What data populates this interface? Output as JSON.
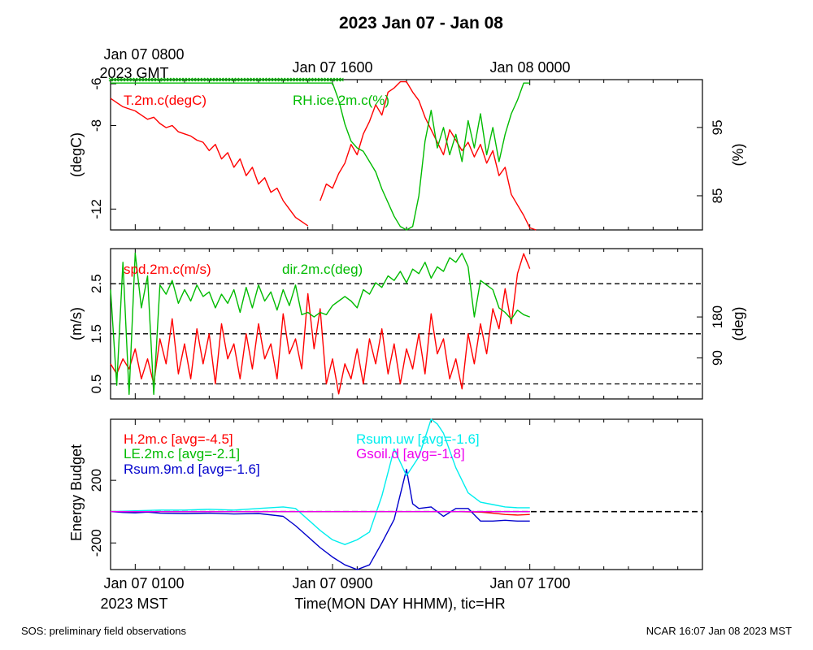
{
  "title": "2023 Jan 07 - Jan 08",
  "top_axis": {
    "origin_line1": "Jan 07 0800",
    "origin_line2": "2023 GMT",
    "tick_labels": [
      "Jan 07 1600",
      "Jan 08 0000"
    ]
  },
  "bottom_axis": {
    "tick_labels": [
      "Jan 07 0100",
      "Jan 07 0900",
      "Jan 07 1700"
    ],
    "tz_label": "2023 MST",
    "xlabel": "Time(MON DAY HHMM), tic=HR"
  },
  "footer": {
    "left": "SOS: preliminary field observations",
    "right": "NCAR 16:07 Jan 08 2023 MST"
  },
  "colors": {
    "red": "#ff0000",
    "green": "#00bb00",
    "blue": "#0000cc",
    "cyan": "#00eeee",
    "magenta": "#ee00ee"
  },
  "chart_data": [
    {
      "type": "line",
      "panel": "temperature_rh",
      "x_unit": "hours since Jan 07 0000 MST",
      "xlim": [
        0,
        24
      ],
      "ylabel_left": "(degC)",
      "ylabel_right": "(%)",
      "ylim_left": [
        -13.0,
        -5.8
      ],
      "ylim_right": [
        80,
        102
      ],
      "yticks_left": [
        -6,
        -8,
        -12
      ],
      "yticks_left_labels": [
        "-6",
        "-8",
        "-12"
      ],
      "yticks_right": [
        95,
        85
      ],
      "yticks_right_labels": [
        "95",
        "85"
      ],
      "legend": [
        "T.2m.c(degC)",
        "RH.ice.2m.c(%)"
      ],
      "series": [
        {
          "name": "T.2m.c(degC)",
          "axis": "left",
          "x": [
            0.0,
            0.25,
            0.5,
            0.75,
            1.0,
            1.25,
            1.5,
            1.75,
            2.0,
            2.25,
            2.5,
            2.75,
            3.0,
            3.25,
            3.5,
            3.75,
            4.0,
            4.25,
            4.5,
            4.75,
            5.0,
            5.25,
            5.5,
            5.75,
            6.0,
            6.25,
            6.5,
            6.75,
            7.0,
            7.25,
            7.5,
            7.75,
            8.0,
            8.25,
            8.5,
            8.75,
            9.0,
            9.25,
            9.5,
            9.75,
            10.0,
            10.25,
            10.5,
            10.75,
            11.0,
            11.25,
            11.5,
            11.75,
            12.0,
            12.25,
            12.5,
            12.75,
            13.0,
            13.25,
            13.5,
            13.75,
            14.0,
            14.25,
            14.5,
            14.75,
            15.0,
            15.25,
            15.5,
            15.75,
            16.0,
            16.25,
            16.5,
            16.75,
            17.0,
            17.25
          ],
          "y": [
            -6.7,
            -6.9,
            -7.1,
            -7.2,
            -7.3,
            -7.5,
            -7.7,
            -7.6,
            -7.9,
            -8.1,
            -8.0,
            -8.3,
            -8.4,
            -8.5,
            -8.7,
            -8.8,
            -9.2,
            -8.9,
            -9.6,
            -9.3,
            -10.0,
            -9.6,
            -10.4,
            -10.0,
            -10.8,
            -10.5,
            -11.2,
            -11.0,
            -11.6,
            -12.0,
            -12.4,
            -12.6,
            -12.8,
            null,
            -11.6,
            -10.8,
            -11.0,
            -10.3,
            -9.8,
            -8.9,
            -9.4,
            -8.4,
            -7.8,
            -7.0,
            -7.5,
            -6.4,
            -6.2,
            -5.9,
            -5.9,
            -6.4,
            -6.8,
            -7.6,
            -8.2,
            -8.8,
            -9.4,
            -8.2,
            -8.7,
            -9.2,
            -8.8,
            -9.5,
            -8.9,
            -9.8,
            -9.2,
            -10.4,
            -10.0,
            -11.3,
            -11.8,
            -12.3,
            -12.9,
            -13.1
          ]
        },
        {
          "name": "RH.ice.2m.c(%)",
          "axis": "right",
          "x": [
            0.0,
            0.5,
            1.0,
            1.5,
            2.0,
            2.5,
            3.0,
            3.5,
            4.0,
            4.5,
            5.0,
            5.5,
            6.0,
            6.5,
            7.0,
            7.5,
            8.0,
            8.5,
            9.0,
            9.25,
            9.5,
            9.75,
            10.0,
            10.25,
            10.5,
            10.75,
            11.0,
            11.25,
            11.5,
            11.75,
            12.0,
            12.25,
            12.5,
            12.75,
            13.0,
            13.25,
            13.5,
            13.75,
            14.0,
            14.25,
            14.5,
            14.75,
            15.0,
            15.25,
            15.5,
            15.75,
            16.0,
            16.25,
            16.5,
            16.75,
            17.0
          ],
          "y": [
            101.5,
            101.5,
            101.5,
            101.5,
            101.5,
            101.5,
            101.5,
            101.5,
            101.5,
            101.5,
            101.5,
            101.5,
            101.5,
            101.5,
            101.5,
            101.5,
            101.5,
            101.5,
            101.5,
            99.0,
            95.5,
            93.0,
            92.0,
            91.5,
            90.0,
            88.5,
            86.0,
            84.0,
            82.0,
            80.5,
            80.0,
            80.5,
            85.0,
            93.0,
            97.5,
            92.0,
            95.0,
            91.0,
            94.0,
            90.0,
            96.0,
            92.0,
            97.0,
            91.0,
            95.0,
            90.0,
            94.0,
            97.0,
            99.0,
            101.5,
            101.5
          ]
        }
      ]
    },
    {
      "type": "line",
      "panel": "wind",
      "x_unit": "hours since Jan 07 0000 MST",
      "xlim": [
        0,
        24
      ],
      "ylabel_left": "(m/s)",
      "ylabel_right": "(deg)",
      "ylim_left": [
        0.2,
        3.2
      ],
      "ylim_right": [
        0,
        330
      ],
      "yticks_left": [
        0.5,
        1.5,
        2.5
      ],
      "yticks_left_labels": [
        "0.5",
        "1.5",
        "2.5"
      ],
      "yticks_right": [
        90,
        180
      ],
      "yticks_right_labels": [
        "90",
        "180"
      ],
      "legend": [
        "spd.2m.c(m/s)",
        "dir.2m.c(deg)"
      ],
      "series": [
        {
          "name": "spd.2m.c(m/s)",
          "axis": "left",
          "x": [
            0.0,
            0.25,
            0.5,
            0.75,
            1.0,
            1.25,
            1.5,
            1.75,
            2.0,
            2.25,
            2.5,
            2.75,
            3.0,
            3.25,
            3.5,
            3.75,
            4.0,
            4.25,
            4.5,
            4.75,
            5.0,
            5.25,
            5.5,
            5.75,
            6.0,
            6.25,
            6.5,
            6.75,
            7.0,
            7.25,
            7.5,
            7.75,
            8.0,
            8.25,
            8.5,
            8.75,
            9.0,
            9.25,
            9.5,
            9.75,
            10.0,
            10.25,
            10.5,
            10.75,
            11.0,
            11.25,
            11.5,
            11.75,
            12.0,
            12.25,
            12.5,
            12.75,
            13.0,
            13.25,
            13.5,
            13.75,
            14.0,
            14.25,
            14.5,
            14.75,
            15.0,
            15.25,
            15.5,
            15.75,
            16.0,
            16.25,
            16.5,
            16.75,
            17.0
          ],
          "y": [
            0.9,
            0.7,
            1.0,
            0.8,
            1.2,
            0.6,
            1.0,
            0.5,
            1.4,
            0.9,
            1.8,
            0.7,
            1.3,
            0.6,
            1.6,
            0.9,
            1.5,
            0.5,
            1.7,
            1.0,
            1.3,
            0.6,
            1.5,
            0.8,
            1.7,
            1.0,
            1.3,
            0.6,
            1.9,
            1.1,
            1.4,
            0.8,
            2.3,
            1.2,
            2.0,
            0.5,
            1.0,
            0.3,
            0.9,
            0.6,
            1.2,
            0.5,
            1.4,
            0.9,
            1.6,
            0.7,
            1.3,
            0.5,
            1.2,
            0.8,
            1.5,
            0.7,
            1.9,
            1.1,
            1.4,
            0.6,
            1.0,
            0.4,
            1.5,
            0.9,
            1.7,
            1.1,
            2.0,
            1.6,
            2.4,
            1.7,
            2.7,
            3.1,
            2.8
          ]
        },
        {
          "name": "dir.2m.c(deg)",
          "axis": "right",
          "x": [
            0.0,
            0.25,
            0.5,
            0.75,
            1.0,
            1.25,
            1.5,
            1.75,
            2.0,
            2.25,
            2.5,
            2.75,
            3.0,
            3.25,
            3.5,
            3.75,
            4.0,
            4.25,
            4.5,
            4.75,
            5.0,
            5.25,
            5.5,
            5.75,
            6.0,
            6.25,
            6.5,
            6.75,
            7.0,
            7.25,
            7.5,
            7.75,
            8.0,
            8.25,
            8.5,
            8.75,
            9.0,
            9.25,
            9.5,
            9.75,
            10.0,
            10.25,
            10.5,
            10.75,
            11.0,
            11.25,
            11.5,
            11.75,
            12.0,
            12.25,
            12.5,
            12.75,
            13.0,
            13.25,
            13.5,
            13.75,
            14.0,
            14.25,
            14.5,
            14.75,
            15.0,
            15.25,
            15.5,
            15.75,
            16.0,
            16.25,
            16.5,
            16.75,
            17.0
          ],
          "y": [
            240,
            30,
            300,
            10,
            320,
            200,
            270,
            10,
            250,
            230,
            260,
            210,
            240,
            215,
            250,
            225,
            235,
            200,
            230,
            210,
            240,
            190,
            245,
            200,
            250,
            215,
            235,
            195,
            240,
            205,
            250,
            185,
            190,
            180,
            190,
            185,
            205,
            215,
            225,
            215,
            200,
            240,
            230,
            255,
            245,
            270,
            260,
            280,
            255,
            285,
            275,
            300,
            265,
            290,
            280,
            310,
            300,
            320,
            290,
            180,
            260,
            250,
            240,
            200,
            190,
            175,
            195,
            185,
            180
          ]
        }
      ]
    },
    {
      "type": "line",
      "panel": "energy_budget",
      "x_unit": "hours since Jan 07 0000 MST",
      "xlim": [
        0,
        24
      ],
      "ylabel_left": "Energy Budget",
      "ylim_left": [
        -370,
        590
      ],
      "yticks_left": [
        200,
        -200
      ],
      "yticks_left_labels": [
        "200",
        "-200"
      ],
      "legend": [
        "H.2m.c [avg=-4.5]",
        "LE.2m.c [avg=-2.1]",
        "Rsum.9m.d [avg=-1.6]",
        "Rsum.uw [avg=-1.6]",
        "Gsoil.d [avg=-1.8]"
      ],
      "series": [
        {
          "name": "H.2m.c [avg=-4.5]",
          "color": "red",
          "x": [
            0,
            2,
            4,
            6,
            8,
            10,
            12,
            14,
            15,
            15.5,
            16,
            16.5,
            17
          ],
          "y": [
            0,
            0,
            0,
            0,
            0,
            0,
            0,
            0,
            -3,
            -10,
            -18,
            -22,
            -18
          ]
        },
        {
          "name": "LE.2m.c [avg=-2.1]",
          "color": "green",
          "x": [
            0,
            4,
            8,
            12,
            16,
            17
          ],
          "y": [
            0,
            0,
            0,
            0,
            0,
            0
          ]
        },
        {
          "name": "Rsum.9m.d [avg=-1.6]",
          "color": "blue",
          "x": [
            0,
            0.5,
            1,
            1.5,
            2,
            3,
            4,
            5,
            6,
            7,
            7.5,
            8,
            8.5,
            9,
            9.5,
            10,
            10.5,
            11,
            11.5,
            12,
            12.25,
            12.5,
            13,
            13.5,
            14,
            14.5,
            15,
            15.5,
            16,
            16.5,
            17
          ],
          "y": [
            0,
            -5,
            -8,
            -3,
            -10,
            -12,
            -10,
            -15,
            -12,
            -30,
            -90,
            -160,
            -230,
            -290,
            -340,
            -370,
            -340,
            -200,
            -50,
            270,
            50,
            20,
            30,
            -30,
            20,
            20,
            -60,
            -60,
            -55,
            -60,
            -60
          ]
        },
        {
          "name": "Rsum.uw [avg=-1.6]",
          "color": "cyan",
          "x": [
            0,
            1,
            2,
            3,
            4,
            5,
            6,
            7,
            7.5,
            8,
            8.5,
            9,
            9.5,
            10,
            10.5,
            11,
            11.5,
            12,
            12.5,
            13,
            13.25,
            13.5,
            14,
            14.5,
            15,
            15.5,
            16,
            16.5,
            17
          ],
          "y": [
            0,
            5,
            10,
            10,
            15,
            10,
            20,
            30,
            20,
            -50,
            -120,
            -180,
            -210,
            -180,
            -130,
            100,
            400,
            230,
            350,
            590,
            560,
            500,
            280,
            120,
            60,
            45,
            30,
            25,
            25
          ]
        },
        {
          "name": "Gsoil.d [avg=-1.8]",
          "color": "magenta",
          "x": [
            0,
            8,
            16,
            17
          ],
          "y": [
            0,
            0,
            0,
            0
          ]
        }
      ]
    }
  ]
}
